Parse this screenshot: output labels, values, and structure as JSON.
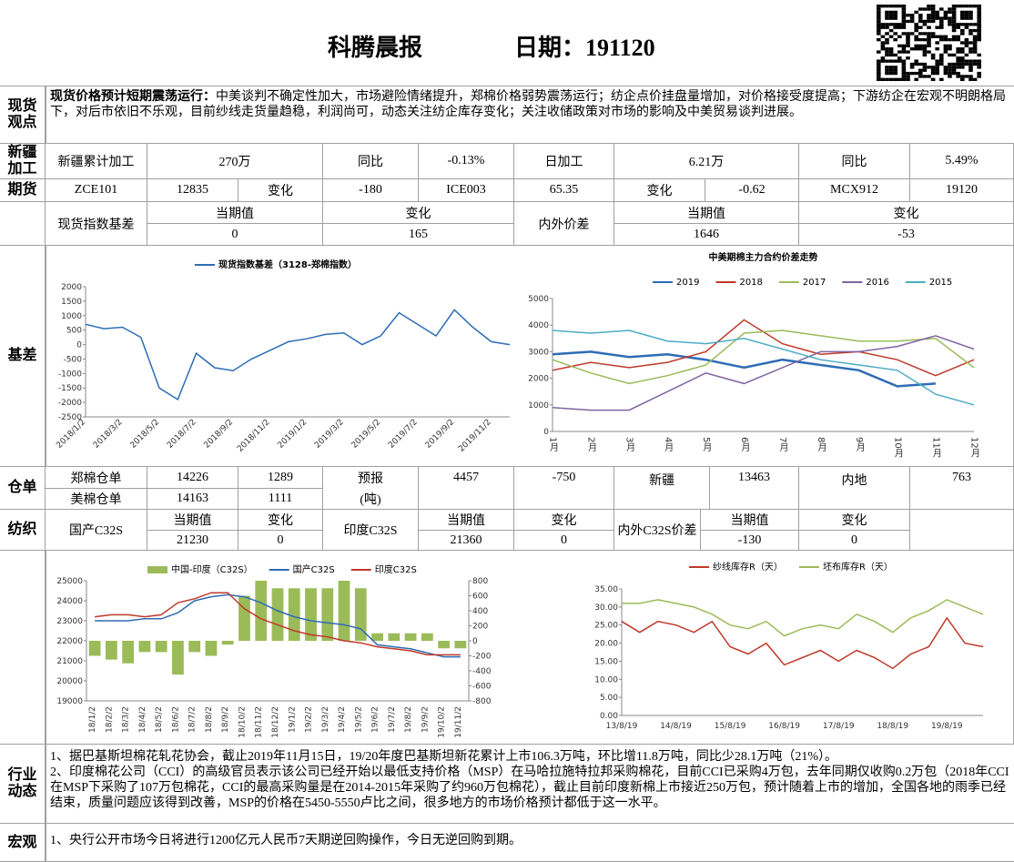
{
  "header": {
    "title": "科腾晨报",
    "date": "日期：191120"
  },
  "views": {
    "label": "现货观点",
    "lead": "现货价格预计短期震荡运行：",
    "text": "中美谈判不确定性加大，市场避险情绪提升，郑棉价格弱势震荡运行；纺企点价挂盘量增加，对价格接受度提高；下游纺企在宏观不明朗格局下，对后市依旧不乐观，目前纱线走货量趋稳，利润尚可，动态关注纺企库存变化；关注收储政策对市场的影响及中美贸易谈判进展。"
  },
  "xinjiang": {
    "label": "新疆加工",
    "cells": [
      "新疆累计加工",
      "270万",
      "同比",
      "-0.13%",
      "日加工",
      "6.21万",
      "同比",
      "5.49%"
    ]
  },
  "futures": {
    "label": "期货",
    "cells": [
      "ZCE101",
      12835,
      "变化",
      -180,
      "ICE003",
      65.35,
      "变化",
      -0.62,
      "MCX912",
      19120
    ]
  },
  "index": {
    "label": "现货指数基差",
    "current": "当期值",
    "current_value": 0,
    "change": "变化",
    "change_value": 165,
    "spread_label": "内外价差",
    "spread_current": "当期值",
    "spread_current_value": 1646,
    "spread_change": "变化",
    "spread_change_value": -53
  },
  "basis": {
    "label": "基差"
  },
  "warehouse": {
    "label": "仓单",
    "zhengzhou": {
      "label": "郑棉仓单",
      "stock": 14226,
      "change": 1289
    },
    "us": {
      "label": "美棉仓单",
      "stock": 14163,
      "change": 1111
    },
    "forecast": "预报",
    "unit": "(吨)",
    "forecast_value": 4457,
    "forecast_change": -750,
    "xinjiang": "新疆",
    "xinjiang_value": 13463,
    "inland": "内地",
    "inland_value": 763
  },
  "textile": {
    "label": "纺织",
    "domestic": "国产C32S",
    "d_current": "当期值",
    "d_current_value": 21230,
    "d_change": "变化",
    "d_change_value": 0,
    "india": "印度C32S",
    "i_current": "当期值",
    "i_current_value": 21360,
    "i_change": "变化",
    "i_change_value": 0,
    "spread": "内外C32S价差",
    "s_current": "当期值",
    "s_current_value": -130,
    "s_change": "变化",
    "s_change_value": 0
  },
  "news": {
    "label": "行业动态",
    "items": [
      "1、据巴基斯坦棉花轧花协会，截止2019年11月15日，19/20年度巴基斯坦新花累计上市106.3万吨，环比增11.8万吨，同比少28.1万吨（21%）。",
      "2、印度棉花公司（CCI）的高级官员表示该公司已经开始以最低支持价格（MSP）在马哈拉施特拉邦采购棉花，目前CCI已采购4万包，去年同期仅收购0.2万包（2018年CCI在MSP下采购了107万包棉花，CCI的最高采购量是在2014-2015年采购了约960万包棉花），截止目前印度新棉上市接近250万包，预计随着上市的增加，全国各地的雨季已经结束，质量问题应该得到改善，MSP的价格在5450-5550卢比之间，很多地方的市场价格预计都低于这一水平。"
    ]
  },
  "macro": {
    "label": "宏观",
    "items": [
      "1、央行公开市场今日将进行1200亿元人民币7天期逆回购操作，今日无逆回购到期。"
    ]
  },
  "chart_data": [
    {
      "type": "line",
      "categories": [
        "2018/1/2",
        null,
        "2018/3/2",
        null,
        "2018/5/2",
        null,
        "2018/7/2",
        null,
        "2018/9/2",
        null,
        "2018/11/2",
        null,
        "2019/1/2",
        null,
        "2019/3/2",
        null,
        "2019/5/2",
        null,
        "2019/7/2",
        null,
        "2019/9/2",
        null,
        "2019/11/2",
        null
      ],
      "series": [
        {
          "name": "现货指数基差（3128-郑棉指数）",
          "color": "#2e6cb5",
          "values": [
            700,
            550,
            600,
            250,
            -1500,
            -1900,
            -300,
            -800,
            -900,
            -500,
            -200,
            100,
            200,
            350,
            400,
            0,
            300,
            1100,
            700,
            300,
            1200,
            600,
            100,
            0
          ]
        }
      ],
      "ylim": [
        -2500,
        2000
      ],
      "yticks": [
        -2500,
        -2000,
        -1500,
        -1000,
        -500,
        0,
        500,
        1000,
        1500,
        2000
      ]
    },
    {
      "type": "line",
      "title": "中美期棉主力合约价差走势",
      "categories": [
        "1月",
        "2月",
        "3月",
        "4月",
        "5月",
        "6月",
        "7月",
        "8月",
        "9月",
        "10月",
        "11月",
        "12月"
      ],
      "series": [
        {
          "name": "2019",
          "color": "#2e6cb5",
          "values": [
            2900,
            3000,
            2800,
            2900,
            2700,
            2400,
            2700,
            2500,
            2300,
            1700,
            1800,
            null
          ]
        },
        {
          "name": "2018",
          "color": "#c0392b",
          "values": [
            2300,
            2600,
            2400,
            2600,
            3000,
            4200,
            3300,
            2900,
            3000,
            2700,
            2100,
            2700
          ]
        },
        {
          "name": "2017",
          "color": "#9bbb59",
          "values": [
            2700,
            2200,
            1800,
            2100,
            2500,
            3700,
            3800,
            3600,
            3400,
            3400,
            3500,
            2400
          ]
        },
        {
          "name": "2016",
          "color": "#8064a2",
          "values": [
            900,
            800,
            800,
            1500,
            2200,
            1800,
            2400,
            3000,
            3000,
            3200,
            3600,
            3100
          ]
        },
        {
          "name": "2015",
          "color": "#4bacc6",
          "values": [
            3800,
            3700,
            3800,
            3400,
            3300,
            3500,
            3100,
            2700,
            2500,
            2300,
            1400,
            1000
          ]
        }
      ],
      "ylim": [
        0,
        5000
      ],
      "yticks": [
        0,
        1000,
        2000,
        3000,
        4000,
        5000
      ]
    },
    {
      "type": "combo",
      "categories": [
        "18/1/2",
        "18/2/2",
        "18/3/2",
        "18/4/2",
        "18/5/2",
        "18/6/2",
        "18/7/2",
        "18/8/2",
        "18/9/2",
        "18/10/2",
        "18/11/2",
        "18/12/2",
        "19/1/2",
        "19/2/2",
        "19/3/2",
        "19/4/2",
        "19/5/2",
        "19/6/2",
        "19/7/2",
        "19/8/2",
        "19/9/2",
        "19/10/2",
        "19/11/2"
      ],
      "series": [
        {
          "name": "中国-印度（C32S）",
          "type": "bar",
          "axis": "y2",
          "color": "#9bbb59",
          "values": [
            -200,
            -250,
            -300,
            -150,
            -150,
            -450,
            -150,
            -200,
            -50,
            600,
            800,
            700,
            700,
            700,
            700,
            800,
            700,
            100,
            100,
            100,
            100,
            -100,
            -100
          ]
        },
        {
          "name": "国产C32S",
          "type": "line",
          "color": "#2e6cb5",
          "values": [
            23000,
            23000,
            23000,
            23100,
            23100,
            23400,
            24000,
            24200,
            24300,
            24200,
            23900,
            23500,
            23200,
            23000,
            22900,
            22800,
            22600,
            21800,
            21700,
            21600,
            21400,
            21200,
            21200
          ]
        },
        {
          "name": "印度C32S",
          "type": "line",
          "color": "#c0392b",
          "values": [
            23200,
            23300,
            23300,
            23200,
            23300,
            23900,
            24100,
            24400,
            24400,
            23600,
            23100,
            22800,
            22500,
            22300,
            22200,
            22000,
            21900,
            21700,
            21600,
            21500,
            21300,
            21300,
            21300
          ]
        }
      ],
      "ylim": [
        19000,
        25000
      ],
      "yticks": [
        19000,
        20000,
        21000,
        22000,
        23000,
        24000,
        25000
      ],
      "y2lim": [
        -800,
        800
      ],
      "y2ticks": [
        -800,
        -600,
        -400,
        -200,
        0,
        200,
        400,
        600,
        800
      ]
    },
    {
      "type": "line",
      "categories": [
        "13/8/19",
        null,
        null,
        "14/8/19",
        null,
        null,
        "15/8/19",
        null,
        null,
        "16/8/19",
        null,
        null,
        "17/8/19",
        null,
        null,
        "18/8/19",
        null,
        null,
        "19/8/19",
        null,
        null
      ],
      "series": [
        {
          "name": "纱线库存R（天）",
          "color": "#c0392b",
          "values": [
            26,
            23,
            26,
            25,
            23,
            26,
            19,
            17,
            20,
            14,
            16,
            18,
            15,
            18,
            16,
            13,
            17,
            19,
            27,
            20,
            19
          ]
        },
        {
          "name": "坯布库存R（天）",
          "color": "#9bbb59",
          "values": [
            31,
            31,
            32,
            31,
            30,
            28,
            25,
            24,
            26,
            22,
            24,
            25,
            24,
            28,
            26,
            23,
            27,
            29,
            32,
            30,
            28
          ]
        }
      ],
      "ylim": [
        0,
        35
      ],
      "yticks": [
        {
          "value": 0,
          "label": "0.00"
        },
        {
          "value": 5,
          "label": "5.00"
        },
        {
          "value": 10,
          "label": "10.00"
        },
        {
          "value": 15,
          "label": "15.00"
        },
        {
          "value": 20,
          "label": "20.00"
        },
        {
          "value": 25,
          "label": "25.00"
        },
        {
          "value": 30,
          "label": "30.00"
        },
        {
          "value": 35,
          "label": "35.00"
        }
      ]
    }
  ]
}
